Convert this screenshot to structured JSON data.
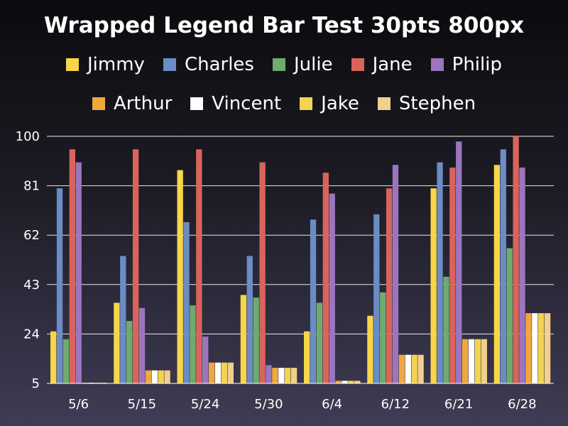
{
  "chart_data": {
    "type": "bar",
    "title": "Wrapped Legend Bar Test 30pts 800px",
    "xlabel": "",
    "ylabel": "",
    "categories": [
      "5/6",
      "5/15",
      "5/24",
      "5/30",
      "6/4",
      "6/12",
      "6/21",
      "6/28"
    ],
    "ylim": [
      5,
      100
    ],
    "yticks": [
      5,
      24,
      43,
      62,
      81,
      100
    ],
    "grid": true,
    "legend_position": "top",
    "series": [
      {
        "name": "Jimmy",
        "color": "#f9d548",
        "values": [
          25,
          36,
          87,
          39,
          25,
          31,
          80,
          89
        ]
      },
      {
        "name": "Charles",
        "color": "#6b8cc4",
        "values": [
          80,
          54,
          67,
          54,
          68,
          70,
          90,
          95
        ]
      },
      {
        "name": "Julie",
        "color": "#6faa6f",
        "values": [
          22,
          29,
          35,
          38,
          36,
          40,
          46,
          57
        ]
      },
      {
        "name": "Jane",
        "color": "#d9645c",
        "values": [
          95,
          95,
          95,
          90,
          86,
          80,
          88,
          100
        ]
      },
      {
        "name": "Philip",
        "color": "#9b76bf",
        "values": [
          90,
          34,
          23,
          12,
          78,
          89,
          98,
          88
        ]
      },
      {
        "name": "Arthur",
        "color": "#f0a83e",
        "values": [
          5,
          10,
          13,
          11,
          6,
          16,
          22,
          32
        ]
      },
      {
        "name": "Vincent",
        "color": "#ffffff",
        "values": [
          5,
          10,
          13,
          11,
          6,
          16,
          22,
          32
        ]
      },
      {
        "name": "Jake",
        "color": "#f2d352",
        "values": [
          5,
          10,
          13,
          11,
          6,
          16,
          22,
          32
        ]
      },
      {
        "name": "Stephen",
        "color": "#f1cf8c",
        "values": [
          5,
          10,
          13,
          11,
          6,
          16,
          22,
          32
        ]
      }
    ]
  }
}
